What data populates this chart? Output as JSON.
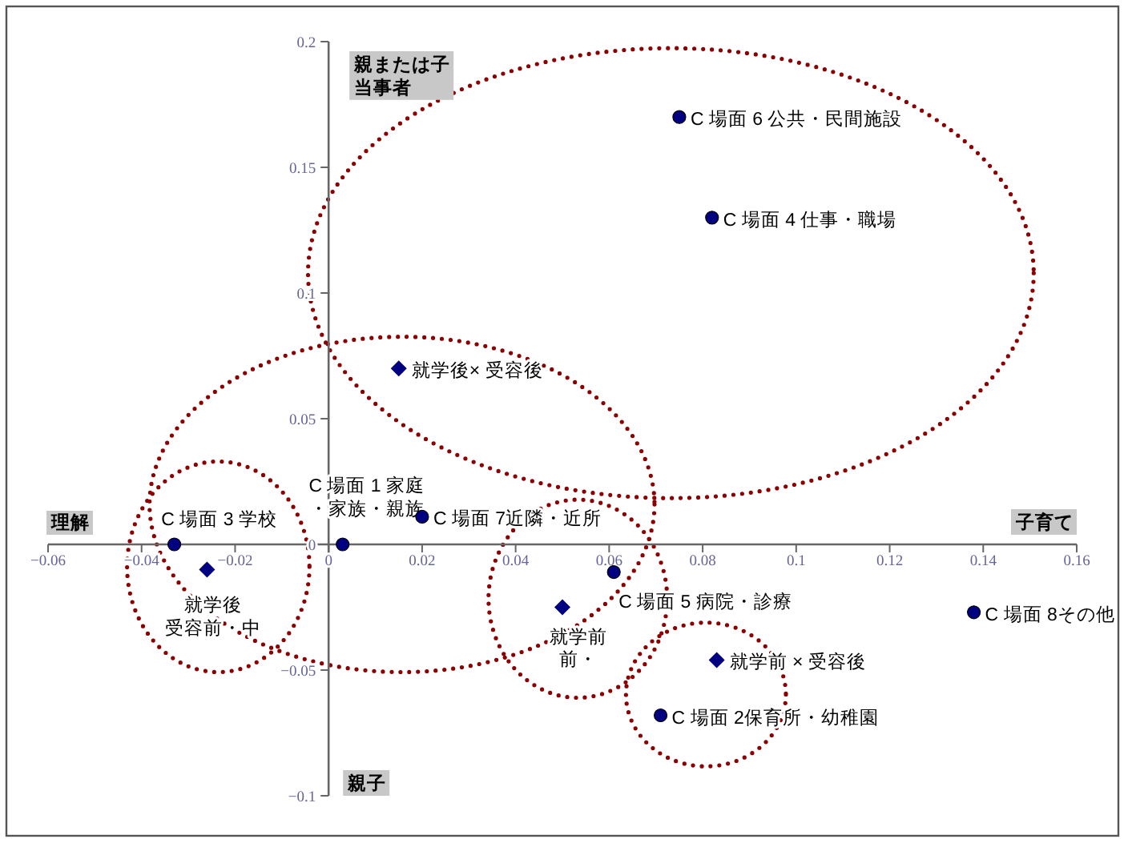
{
  "chart_data": {
    "type": "scatter",
    "xlim": [
      -0.06,
      0.16
    ],
    "ylim": [
      -0.1,
      0.2
    ],
    "xticks": [
      -0.06,
      -0.04,
      -0.02,
      0,
      0.02,
      0.04,
      0.06,
      0.08,
      0.1,
      0.12,
      0.14,
      0.16
    ],
    "yticks": [
      -0.1,
      -0.05,
      0,
      0.05,
      0.1,
      0.15,
      0.2
    ],
    "grid": false,
    "series": [
      {
        "color": "#000080",
        "marker": "circle",
        "x": [
          0.075,
          0.082,
          0.003,
          0.02,
          -0.033,
          0.061,
          0.071,
          0.138
        ],
        "values": [
          0.17,
          0.13,
          0,
          0.011,
          0,
          -0.011,
          -0.068,
          -0.027
        ]
      },
      {
        "color": "#000080",
        "marker": "diamond",
        "x": [
          0.015,
          -0.026,
          0.05,
          0.083
        ],
        "values": [
          0.07,
          -0.01,
          -0.025,
          -0.046
        ]
      }
    ],
    "annotations": [
      {
        "text": "C 場面 6 公共・民間施設",
        "x": 0.075,
        "y": 0.17
      },
      {
        "text": "C 場面 4 仕事・職場",
        "x": 0.082,
        "y": 0.13
      },
      {
        "text": "C 場面 1 家庭・家族・親族",
        "x": 0.003,
        "y": 0
      },
      {
        "text": "C 場面 7近隣・近所",
        "x": 0.02,
        "y": 0.011
      },
      {
        "text": "C 場面 3 学校",
        "x": -0.033,
        "y": 0
      },
      {
        "text": "C 場面 5 病院・診療",
        "x": 0.061,
        "y": -0.011
      },
      {
        "text": "C 場面 2保育所・幼稚園",
        "x": 0.071,
        "y": -0.068
      },
      {
        "text": "C 場面 8その他",
        "x": 0.138,
        "y": -0.027
      },
      {
        "text": "就学後× 受容後",
        "x": 0.015,
        "y": 0.07
      },
      {
        "text": "就学後受容前・中",
        "x": -0.026,
        "y": -0.01
      },
      {
        "text": "就学前前・",
        "x": 0.05,
        "y": -0.025
      },
      {
        "text": "就学前 × 受容後",
        "x": 0.083,
        "y": -0.046
      },
      "理解",
      "子育て",
      "親または子当事者",
      "親子"
    ]
  }
}
